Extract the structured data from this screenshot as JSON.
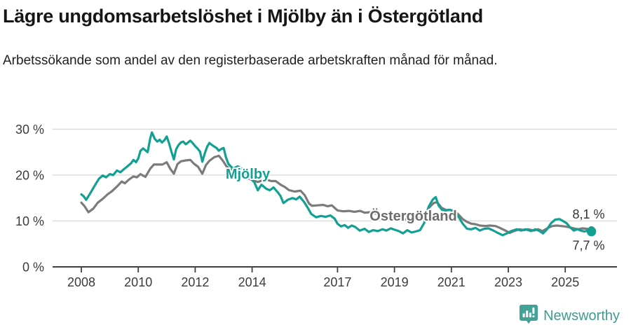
{
  "header": {
    "title": "Lägre ungdomsarbetslöshet i Mjölby än i Östergötland",
    "subtitle": "Arbetssökande som andel av den registerbaserade arbetskraften månad för månad."
  },
  "footer": {
    "brand": "Newsworthy",
    "brand_color": "#3d9c8f",
    "logo_icon": "newsworthy-bubble-barchart-icon"
  },
  "chart_data": {
    "type": "line",
    "title": "Lägre ungdomsarbetslöshet i Mjölby än i Östergötland",
    "subtitle": "Arbetssökande som andel av den registerbaserade arbetskraften månad för månad.",
    "x_axis": {
      "ticks": [
        2008,
        2010,
        2012,
        2014,
        2017,
        2019,
        2021,
        2023,
        2025
      ],
      "range": [
        2007.9,
        2026.8
      ],
      "grid": false
    },
    "y_axis": {
      "tick_values": [
        0,
        10,
        20,
        30
      ],
      "tick_labels": [
        "0 %",
        "10 %",
        "20 %",
        "30 %"
      ],
      "range": [
        0,
        32
      ],
      "grid": true
    },
    "legend_position": "inline-labels",
    "colors": {
      "grid": "#dadada",
      "axis": "#404040",
      "axis_text": "#3b3b3b",
      "end_label_text": "#333333"
    },
    "series": [
      {
        "name": "Östergötland",
        "color": "#7b7b7b",
        "label_color": "#6d6d6d",
        "end_label": "8,1 %",
        "end_value": 8.1,
        "end_label_position": "above",
        "end_dot_radius": 5,
        "points": [
          [
            2008.0,
            14.0
          ],
          [
            2008.1,
            13.3
          ],
          [
            2008.25,
            11.9
          ],
          [
            2008.42,
            12.7
          ],
          [
            2008.58,
            14.0
          ],
          [
            2008.75,
            14.8
          ],
          [
            2008.92,
            15.8
          ],
          [
            2009.08,
            16.5
          ],
          [
            2009.25,
            17.5
          ],
          [
            2009.42,
            18.6
          ],
          [
            2009.53,
            18.2
          ],
          [
            2009.67,
            19.0
          ],
          [
            2009.83,
            19.7
          ],
          [
            2009.95,
            19.5
          ],
          [
            2010.08,
            20.2
          ],
          [
            2010.25,
            19.6
          ],
          [
            2010.42,
            21.4
          ],
          [
            2010.55,
            22.3
          ],
          [
            2010.7,
            22.3
          ],
          [
            2010.85,
            22.3
          ],
          [
            2011.0,
            22.8
          ],
          [
            2011.12,
            21.4
          ],
          [
            2011.25,
            20.3
          ],
          [
            2011.38,
            22.4
          ],
          [
            2011.5,
            23.0
          ],
          [
            2011.67,
            23.2
          ],
          [
            2011.83,
            23.3
          ],
          [
            2011.95,
            22.5
          ],
          [
            2012.1,
            21.8
          ],
          [
            2012.25,
            20.3
          ],
          [
            2012.38,
            22.2
          ],
          [
            2012.5,
            23.1
          ],
          [
            2012.67,
            23.9
          ],
          [
            2012.83,
            24.2
          ],
          [
            2012.95,
            23.3
          ],
          [
            2013.1,
            21.9
          ],
          [
            2013.25,
            21.2
          ],
          [
            2013.42,
            20.8
          ],
          [
            2013.58,
            20.4
          ],
          [
            2013.75,
            19.8
          ],
          [
            2013.9,
            19.2
          ],
          [
            2014.05,
            18.8
          ],
          [
            2014.2,
            18.5
          ],
          [
            2014.35,
            18.8
          ],
          [
            2014.5,
            19.0
          ],
          [
            2014.67,
            18.7
          ],
          [
            2014.83,
            18.7
          ],
          [
            2015.0,
            17.9
          ],
          [
            2015.15,
            17.4
          ],
          [
            2015.3,
            16.7
          ],
          [
            2015.5,
            16.4
          ],
          [
            2015.7,
            16.6
          ],
          [
            2015.85,
            15.6
          ],
          [
            2016.0,
            13.8
          ],
          [
            2016.1,
            13.3
          ],
          [
            2016.3,
            13.4
          ],
          [
            2016.5,
            13.5
          ],
          [
            2016.65,
            13.2
          ],
          [
            2016.8,
            13.4
          ],
          [
            2017.0,
            12.3
          ],
          [
            2017.2,
            12.1
          ],
          [
            2017.4,
            12.2
          ],
          [
            2017.6,
            12.0
          ],
          [
            2017.8,
            12.2
          ],
          [
            2017.95,
            11.8
          ],
          [
            2018.15,
            11.9
          ],
          [
            2018.35,
            11.6
          ],
          [
            2018.55,
            11.5
          ],
          [
            2018.75,
            11.3
          ],
          [
            2019.0,
            11.0
          ],
          [
            2019.25,
            10.6
          ],
          [
            2019.5,
            10.2
          ],
          [
            2019.7,
            10.4
          ],
          [
            2019.9,
            10.7
          ],
          [
            2020.05,
            11.3
          ],
          [
            2020.2,
            12.8
          ],
          [
            2020.38,
            13.9
          ],
          [
            2020.5,
            14.1
          ],
          [
            2020.65,
            12.9
          ],
          [
            2020.8,
            12.4
          ],
          [
            2020.95,
            12.4
          ],
          [
            2021.1,
            12.2
          ],
          [
            2021.25,
            11.4
          ],
          [
            2021.4,
            10.4
          ],
          [
            2021.55,
            9.8
          ],
          [
            2021.7,
            9.4
          ],
          [
            2021.85,
            9.3
          ],
          [
            2022.0,
            9.0
          ],
          [
            2022.2,
            8.9
          ],
          [
            2022.35,
            9.0
          ],
          [
            2022.55,
            8.9
          ],
          [
            2022.7,
            8.5
          ],
          [
            2022.9,
            7.9
          ],
          [
            2023.05,
            7.4
          ],
          [
            2023.2,
            7.8
          ],
          [
            2023.4,
            8.2
          ],
          [
            2023.55,
            8.0
          ],
          [
            2023.7,
            8.2
          ],
          [
            2023.9,
            7.9
          ],
          [
            2024.05,
            8.2
          ],
          [
            2024.2,
            7.8
          ],
          [
            2024.4,
            8.5
          ],
          [
            2024.55,
            8.9
          ],
          [
            2024.7,
            9.0
          ],
          [
            2024.85,
            8.9
          ],
          [
            2025.0,
            8.8
          ],
          [
            2025.15,
            8.6
          ],
          [
            2025.3,
            8.4
          ],
          [
            2025.45,
            8.2
          ],
          [
            2025.6,
            8.4
          ],
          [
            2025.75,
            8.3
          ],
          [
            2025.92,
            8.1
          ]
        ]
      },
      {
        "name": "Mjölby",
        "color": "#11a092",
        "label_color": "#11a092",
        "end_label": "7,7 %",
        "end_value": 7.7,
        "end_label_position": "below",
        "end_dot_radius": 6.8,
        "points": [
          [
            2008.0,
            15.8
          ],
          [
            2008.08,
            15.4
          ],
          [
            2008.17,
            14.6
          ],
          [
            2008.33,
            16.2
          ],
          [
            2008.5,
            18.0
          ],
          [
            2008.62,
            19.2
          ],
          [
            2008.75,
            19.9
          ],
          [
            2008.87,
            19.5
          ],
          [
            2009.0,
            20.2
          ],
          [
            2009.12,
            20.0
          ],
          [
            2009.25,
            21.0
          ],
          [
            2009.37,
            20.6
          ],
          [
            2009.5,
            21.3
          ],
          [
            2009.62,
            21.9
          ],
          [
            2009.75,
            22.6
          ],
          [
            2009.83,
            23.3
          ],
          [
            2009.92,
            22.8
          ],
          [
            2010.0,
            23.6
          ],
          [
            2010.08,
            25.3
          ],
          [
            2010.17,
            25.8
          ],
          [
            2010.25,
            25.4
          ],
          [
            2010.33,
            25.0
          ],
          [
            2010.42,
            28.0
          ],
          [
            2010.48,
            29.3
          ],
          [
            2010.58,
            27.9
          ],
          [
            2010.67,
            27.3
          ],
          [
            2010.75,
            27.7
          ],
          [
            2010.83,
            27.1
          ],
          [
            2010.92,
            27.6
          ],
          [
            2011.0,
            28.4
          ],
          [
            2011.08,
            27.0
          ],
          [
            2011.17,
            25.0
          ],
          [
            2011.25,
            23.4
          ],
          [
            2011.33,
            25.6
          ],
          [
            2011.42,
            26.6
          ],
          [
            2011.5,
            27.1
          ],
          [
            2011.58,
            27.3
          ],
          [
            2011.67,
            26.7
          ],
          [
            2011.75,
            27.1
          ],
          [
            2011.83,
            27.5
          ],
          [
            2011.92,
            26.9
          ],
          [
            2012.0,
            26.3
          ],
          [
            2012.08,
            25.8
          ],
          [
            2012.17,
            25.1
          ],
          [
            2012.25,
            22.9
          ],
          [
            2012.33,
            24.6
          ],
          [
            2012.42,
            26.2
          ],
          [
            2012.5,
            27.0
          ],
          [
            2012.58,
            26.6
          ],
          [
            2012.67,
            26.2
          ],
          [
            2012.75,
            25.9
          ],
          [
            2012.83,
            25.3
          ],
          [
            2012.92,
            25.7
          ],
          [
            2013.0,
            25.9
          ],
          [
            2013.08,
            23.9
          ],
          [
            2013.17,
            22.4
          ],
          [
            2013.33,
            21.4
          ],
          [
            2013.5,
            21.9
          ],
          [
            2013.67,
            21.3
          ],
          [
            2013.83,
            20.1
          ],
          [
            2014.0,
            18.9
          ],
          [
            2014.08,
            18.4
          ],
          [
            2014.2,
            16.7
          ],
          [
            2014.33,
            17.9
          ],
          [
            2014.5,
            17.0
          ],
          [
            2014.62,
            16.7
          ],
          [
            2014.75,
            17.3
          ],
          [
            2014.92,
            16.1
          ],
          [
            2015.0,
            15.4
          ],
          [
            2015.1,
            13.9
          ],
          [
            2015.25,
            14.6
          ],
          [
            2015.42,
            15.0
          ],
          [
            2015.55,
            14.7
          ],
          [
            2015.67,
            15.3
          ],
          [
            2015.83,
            14.1
          ],
          [
            2015.95,
            12.9
          ],
          [
            2016.08,
            11.5
          ],
          [
            2016.25,
            10.8
          ],
          [
            2016.42,
            11.1
          ],
          [
            2016.58,
            10.9
          ],
          [
            2016.75,
            11.2
          ],
          [
            2016.9,
            10.5
          ],
          [
            2017.0,
            9.4
          ],
          [
            2017.12,
            8.8
          ],
          [
            2017.25,
            9.1
          ],
          [
            2017.37,
            8.5
          ],
          [
            2017.5,
            9.0
          ],
          [
            2017.62,
            8.7
          ],
          [
            2017.78,
            7.9
          ],
          [
            2017.95,
            8.3
          ],
          [
            2018.1,
            7.6
          ],
          [
            2018.25,
            8.0
          ],
          [
            2018.42,
            7.8
          ],
          [
            2018.58,
            8.2
          ],
          [
            2018.72,
            7.9
          ],
          [
            2018.87,
            8.4
          ],
          [
            2019.0,
            8.1
          ],
          [
            2019.15,
            7.8
          ],
          [
            2019.3,
            7.3
          ],
          [
            2019.45,
            8.0
          ],
          [
            2019.6,
            7.5
          ],
          [
            2019.75,
            7.7
          ],
          [
            2019.9,
            8.0
          ],
          [
            2020.05,
            9.6
          ],
          [
            2020.2,
            13.1
          ],
          [
            2020.35,
            14.7
          ],
          [
            2020.45,
            15.2
          ],
          [
            2020.55,
            13.4
          ],
          [
            2020.67,
            12.4
          ],
          [
            2020.8,
            12.3
          ],
          [
            2020.95,
            12.4
          ],
          [
            2021.1,
            12.1
          ],
          [
            2021.25,
            10.9
          ],
          [
            2021.4,
            9.4
          ],
          [
            2021.55,
            8.3
          ],
          [
            2021.7,
            8.2
          ],
          [
            2021.85,
            8.5
          ],
          [
            2022.0,
            7.9
          ],
          [
            2022.15,
            8.3
          ],
          [
            2022.3,
            8.4
          ],
          [
            2022.45,
            8.0
          ],
          [
            2022.6,
            7.5
          ],
          [
            2022.8,
            6.9
          ],
          [
            2022.95,
            7.3
          ],
          [
            2023.1,
            7.8
          ],
          [
            2023.3,
            8.2
          ],
          [
            2023.45,
            7.9
          ],
          [
            2023.6,
            8.2
          ],
          [
            2023.8,
            7.8
          ],
          [
            2023.95,
            8.2
          ],
          [
            2024.1,
            7.8
          ],
          [
            2024.22,
            7.3
          ],
          [
            2024.35,
            8.1
          ],
          [
            2024.5,
            9.5
          ],
          [
            2024.65,
            10.3
          ],
          [
            2024.8,
            10.4
          ],
          [
            2024.92,
            10.0
          ],
          [
            2025.05,
            9.5
          ],
          [
            2025.17,
            8.6
          ],
          [
            2025.3,
            7.9
          ],
          [
            2025.42,
            8.2
          ],
          [
            2025.55,
            7.9
          ],
          [
            2025.67,
            7.7
          ],
          [
            2025.8,
            7.9
          ],
          [
            2025.92,
            7.7
          ]
        ]
      }
    ],
    "annotations": [
      {
        "text": "Mjölby",
        "year": 2013.07,
        "pct": 19.2,
        "color": "#11a092"
      },
      {
        "text": "Östergötland",
        "year": 2018.13,
        "pct": 10.07,
        "color": "#6d6d6d"
      }
    ]
  }
}
